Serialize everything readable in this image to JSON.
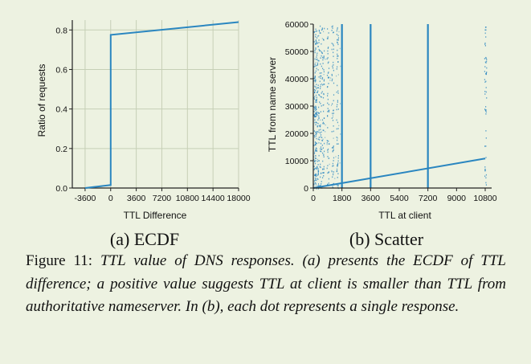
{
  "chart_data": [
    {
      "type": "line",
      "subcaption": "(a) ECDF",
      "xlabel": "TTL Difference",
      "ylabel": "Ratio of requests",
      "xlim": [
        -5400,
        18000
      ],
      "ylim": [
        0,
        0.85
      ],
      "xticks": [
        -3600,
        0,
        3600,
        7200,
        10800,
        14400,
        18000
      ],
      "yticks": [
        0.0,
        0.2,
        0.4,
        0.6,
        0.8
      ],
      "ytick_labels": [
        "0.0",
        "0.2",
        "0.4",
        "0.6",
        "0.8"
      ],
      "grid": true,
      "color": "#2a86c0",
      "series": [
        {
          "x": [
            -3600,
            0,
            0,
            18000
          ],
          "y": [
            0.0,
            0.015,
            0.775,
            0.84
          ]
        }
      ]
    },
    {
      "type": "scatter",
      "subcaption": "(b) Scatter",
      "xlabel": "TTL at client",
      "ylabel": "TTL from name server",
      "xlim": [
        0,
        10800
      ],
      "ylim": [
        0,
        60000
      ],
      "xticks": [
        0,
        1800,
        3600,
        5400,
        7200,
        9000,
        10800
      ],
      "yticks": [
        0,
        10000,
        20000,
        30000,
        40000,
        50000,
        60000
      ],
      "grid": false,
      "color": "#2a86c0",
      "vertical_lines_x": [
        1800,
        3600,
        7200
      ],
      "dotted_columns_x": [
        60,
        120,
        180,
        300,
        450,
        600,
        900,
        1200,
        1500,
        10800
      ],
      "diagonal": {
        "x": [
          0,
          10800
        ],
        "y": [
          0,
          10800
        ]
      }
    }
  ],
  "caption": {
    "label": "Figure 11: ",
    "text": "TTL value of DNS responses. (a) presents the ECDF of TTL difference; a positive value suggests TTL at client is smaller than TTL from authoritative nameserver. In (b), each dot represents a single response."
  }
}
